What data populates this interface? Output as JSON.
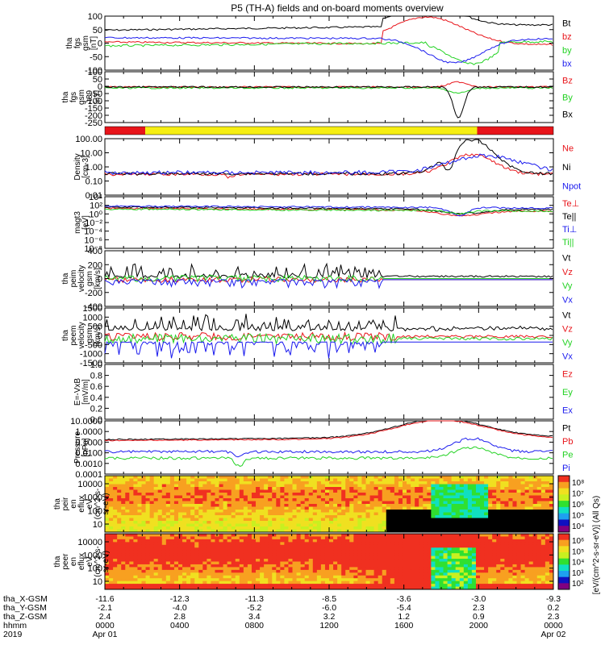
{
  "title": "P5 (TH-A) fields and on-board moments overview",
  "colors": {
    "black": "#000000",
    "red": "#e8141a",
    "green": "#22d222",
    "blue": "#1a1aee",
    "yellow": "#f6ee12"
  },
  "chart_data": [
    {
      "type": "line",
      "ylabel": [
        "tha",
        "fgs",
        "gsm",
        "[nT]"
      ],
      "yticks": [
        "100",
        "50",
        "0",
        "-50",
        "-100"
      ],
      "ylim": [
        -100,
        100
      ],
      "series": [
        {
          "name": "Bt",
          "color": "black"
        },
        {
          "name": "bz",
          "color": "red"
        },
        {
          "name": "by",
          "color": "green"
        },
        {
          "name": "bx",
          "color": "blue"
        }
      ]
    },
    {
      "type": "line",
      "ylabel": [
        "tha",
        "fgs",
        "gsm",
        "-t89",
        "[nT]"
      ],
      "yticks": [
        "100",
        "50",
        "0",
        "-50",
        "-100",
        "-150",
        "-200",
        "-250"
      ],
      "ylim": [
        -250,
        100
      ],
      "series": [
        {
          "name": "Bz",
          "color": "red"
        },
        {
          "name": "By",
          "color": "green"
        },
        {
          "name": "Bx",
          "color": "black"
        }
      ]
    },
    {
      "type": "bar",
      "segments": [
        {
          "from": 0.0,
          "to": 0.09,
          "color": "red"
        },
        {
          "from": 0.09,
          "to": 0.83,
          "color": "yellow"
        },
        {
          "from": 0.83,
          "to": 1.0,
          "color": "red"
        }
      ]
    },
    {
      "type": "line",
      "log": true,
      "ylabel": [
        "Density",
        "[cm-3]"
      ],
      "yticks": [
        "100.00",
        "10.00",
        "1.00",
        "0.10",
        "0.01"
      ],
      "ylim": [
        0.01,
        100
      ],
      "series": [
        {
          "name": "Ne",
          "color": "red"
        },
        {
          "name": "Ni",
          "color": "black"
        },
        {
          "name": "Npot",
          "color": "blue"
        }
      ]
    },
    {
      "type": "line",
      "log": true,
      "ylabel": [
        "magt3",
        "[eV]"
      ],
      "yticks": [
        "10⁴",
        "10²",
        "10⁰",
        "10⁻²",
        "10⁻⁴",
        "10⁻⁶",
        "10⁻⁸"
      ],
      "ylim": [
        1e-08,
        10000
      ],
      "series": [
        {
          "name": "Te⊥",
          "color": "red"
        },
        {
          "name": "Te||",
          "color": "black"
        },
        {
          "name": "Ti⊥",
          "color": "blue"
        },
        {
          "name": "Ti||",
          "color": "green"
        }
      ]
    },
    {
      "type": "line",
      "ylabel": [
        "tha",
        "peim",
        "velocity",
        "gsm",
        "[km/s]"
      ],
      "yticks": [
        "400",
        "200",
        "0",
        "-200",
        "-400"
      ],
      "ylim": [
        -400,
        400
      ],
      "series": [
        {
          "name": "Vt",
          "color": "black"
        },
        {
          "name": "Vz",
          "color": "red"
        },
        {
          "name": "Vy",
          "color": "green"
        },
        {
          "name": "Vx",
          "color": "blue"
        }
      ]
    },
    {
      "type": "line",
      "ylabel": [
        "tha",
        "peem",
        "velocity",
        "gsm",
        "[km/s]"
      ],
      "yticks": [
        "1500",
        "1000",
        "500",
        "0",
        "-500",
        "-1000",
        "-1500"
      ],
      "ylim": [
        -1500,
        1500
      ],
      "series": [
        {
          "name": "Vt",
          "color": "black"
        },
        {
          "name": "Vz",
          "color": "red"
        },
        {
          "name": "Vy",
          "color": "green"
        },
        {
          "name": "Vx",
          "color": "blue"
        }
      ]
    },
    {
      "type": "line",
      "ylabel": [
        "E=-VxB",
        "[mV/m]"
      ],
      "yticks": [
        "1.0",
        "0.8",
        "0.6",
        "0.4",
        "0.2",
        "0.0"
      ],
      "ylim": [
        0,
        1
      ],
      "series": [
        {
          "name": "Ez",
          "color": "red"
        },
        {
          "name": "Ey",
          "color": "green"
        },
        {
          "name": "Ex",
          "color": "blue"
        }
      ]
    },
    {
      "type": "line",
      "log": true,
      "ylabel": [
        "Pressure",
        "[nPa]"
      ],
      "yticks": [
        "10.0000",
        "1.0000",
        "0.1000",
        "0.0100",
        "0.0010",
        "0.0001"
      ],
      "ylim": [
        0.0001,
        10
      ],
      "series": [
        {
          "name": "Pt",
          "color": "black"
        },
        {
          "name": "Pb",
          "color": "red"
        },
        {
          "name": "Pe",
          "color": "green"
        },
        {
          "name": "Pi",
          "color": "blue"
        }
      ]
    },
    {
      "type": "heatmap",
      "ylabel": [
        "tha",
        "peir",
        "en",
        "eflux",
        "eV",
        "(cm^2-s-",
        "sr-eV)"
      ],
      "yticks": [
        "10000",
        "1000",
        "100",
        "10"
      ],
      "ylim": [
        5,
        25000
      ]
    },
    {
      "type": "heatmap",
      "ylabel": [
        "tha",
        "peer",
        "en",
        "eflux",
        "eV",
        "(cm^2-s-",
        "sr-eV)"
      ],
      "yticks": [
        "10000",
        "1000",
        "100",
        "10"
      ],
      "ylim": [
        5,
        25000
      ]
    }
  ],
  "colorbars": [
    {
      "ticks": [
        "10⁸",
        "10⁷",
        "10⁶",
        "10⁵",
        "10⁴"
      ],
      "range": [
        4,
        8.4
      ]
    },
    {
      "ticks": [
        "10⁶",
        "10⁵",
        "10⁴",
        "10³",
        "10²"
      ],
      "range": [
        2,
        6.5
      ]
    }
  ],
  "colorbar_label": "[eV/(cm^2-s-sr-eV)] (All Qs)",
  "axis_rows": [
    {
      "label": "tha_X-GSM",
      "values": [
        "-11.6",
        "-12.3",
        "-11.3",
        "-8.5",
        "-3.6",
        "-3.0",
        "-9.3"
      ]
    },
    {
      "label": "tha_Y-GSM",
      "values": [
        "-2.1",
        "-4.0",
        "-5.2",
        "-6.0",
        "-5.4",
        "2.3",
        "0.2"
      ]
    },
    {
      "label": "tha_Z-GSM",
      "values": [
        "2.4",
        "2.8",
        "3.4",
        "3.2",
        "1.2",
        "0.9",
        "2.3"
      ]
    },
    {
      "label": "hhmm",
      "values": [
        "0000",
        "0400",
        "0800",
        "1200",
        "1600",
        "2000",
        "0000"
      ]
    },
    {
      "label": "2019",
      "values": [
        "Apr 01",
        "",
        "",
        "",
        "",
        "",
        "Apr 02"
      ]
    }
  ]
}
